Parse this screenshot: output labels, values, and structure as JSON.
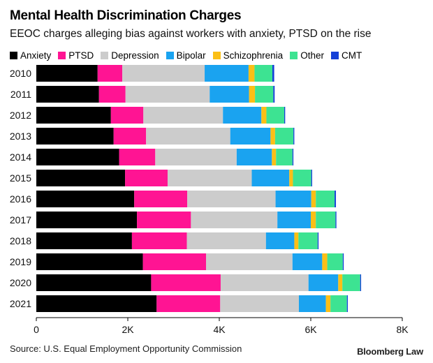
{
  "title": "Mental Health Discrimination Charges",
  "subtitle": "EEOC charges alleging bias against workers with anxiety, PTSD on the rise",
  "source": "Source: U.S. Equal Employment Opportunity Commission",
  "brand": "Bloomberg Law",
  "chart_data": {
    "type": "bar",
    "orientation": "horizontal",
    "stacked": true,
    "categories": [
      "2010",
      "2011",
      "2012",
      "2013",
      "2014",
      "2015",
      "2016",
      "2017",
      "2018",
      "2019",
      "2020",
      "2021"
    ],
    "series": [
      {
        "name": "Anxiety",
        "color": "#000000",
        "values": [
          1340,
          1370,
          1630,
          1690,
          1810,
          1940,
          2140,
          2200,
          2090,
          2330,
          2510,
          2630
        ]
      },
      {
        "name": "PTSD",
        "color": "#ff1493",
        "values": [
          540,
          580,
          710,
          710,
          790,
          930,
          1160,
          1180,
          1200,
          1380,
          1520,
          1390
        ]
      },
      {
        "name": "Depression",
        "color": "#cccccc",
        "values": [
          1800,
          1840,
          1740,
          1840,
          1780,
          1840,
          1930,
          1890,
          1730,
          1890,
          1920,
          1720
        ]
      },
      {
        "name": "Bipolar",
        "color": "#1aa3f0",
        "values": [
          960,
          860,
          840,
          880,
          770,
          820,
          780,
          730,
          620,
          650,
          650,
          590
        ]
      },
      {
        "name": "Schizophrenia",
        "color": "#fbbf16",
        "values": [
          130,
          130,
          110,
          100,
          90,
          80,
          100,
          110,
          90,
          110,
          90,
          100
        ]
      },
      {
        "name": "Other",
        "color": "#3de392",
        "values": [
          390,
          400,
          390,
          400,
          360,
          400,
          410,
          430,
          420,
          340,
          390,
          360
        ]
      },
      {
        "name": "CMT",
        "color": "#1540d8",
        "values": [
          40,
          30,
          20,
          20,
          20,
          20,
          30,
          20,
          20,
          20,
          20,
          20
        ]
      }
    ],
    "xlim": [
      0,
      8000
    ],
    "ticks": [
      {
        "value": 0,
        "label": "0"
      },
      {
        "value": 2000,
        "label": "2K"
      },
      {
        "value": 4000,
        "label": "4K"
      },
      {
        "value": 6000,
        "label": "6K"
      },
      {
        "value": 8000,
        "label": "8K"
      }
    ],
    "legend": "top-left",
    "grid": false
  }
}
